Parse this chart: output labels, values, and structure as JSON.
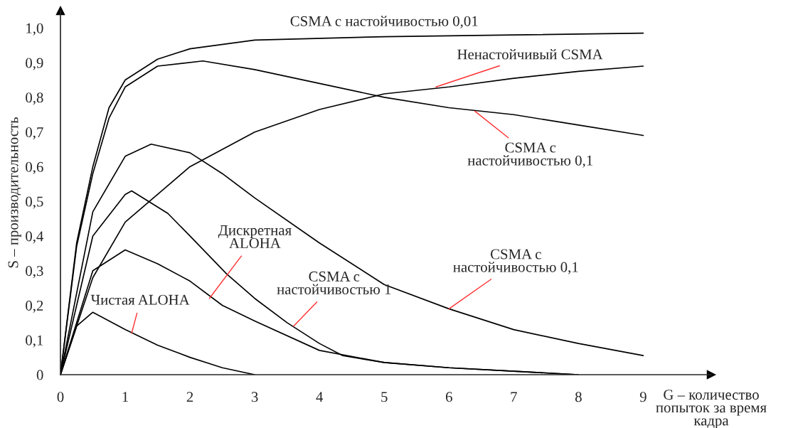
{
  "chart_data": {
    "type": "line",
    "xlabel": "G – количество\nпопыток за время\nкадра",
    "ylabel": "S – производительность",
    "xlim": [
      0,
      10.05
    ],
    "ylim": [
      0,
      1.05
    ],
    "xticks": [
      0,
      1,
      2,
      3,
      4,
      5,
      6,
      7,
      8,
      9
    ],
    "yticks": [
      0,
      {
        "value": 0.1,
        "label": "0,1"
      },
      {
        "value": 0.2,
        "label": "0,2"
      },
      {
        "value": 0.3,
        "label": "0,3"
      },
      {
        "value": 0.4,
        "label": "0,4"
      },
      {
        "value": 0.5,
        "label": "0,5"
      },
      {
        "value": 0.6,
        "label": "0,6"
      },
      {
        "value": 0.7,
        "label": "0,7"
      },
      {
        "value": 0.8,
        "label": "0,8"
      },
      {
        "value": 0.9,
        "label": "0,9"
      },
      {
        "value": 1.0,
        "label": "1,0"
      }
    ],
    "grid": false,
    "legend": false,
    "series": [
      {
        "color": "#000000",
        "x": [
          0,
          0.25,
          0.5,
          0.75,
          1,
          1.5,
          2,
          3,
          5,
          7,
          9
        ],
        "values": [
          0,
          0.38,
          0.6,
          0.77,
          0.85,
          0.91,
          0.94,
          0.965,
          0.975,
          0.98,
          0.985
        ]
      },
      {
        "color": "#000000",
        "x": [
          0,
          0.25,
          0.5,
          0.75,
          1,
          1.5,
          2.2,
          3,
          4,
          5,
          6,
          7,
          8,
          9
        ],
        "values": [
          0,
          0.37,
          0.58,
          0.74,
          0.83,
          0.89,
          0.905,
          0.88,
          0.84,
          0.8,
          0.77,
          0.75,
          0.72,
          0.69
        ]
      },
      {
        "color": "#000000",
        "x": [
          0,
          0.5,
          1,
          2,
          3,
          4,
          5,
          6,
          7,
          8,
          9
        ],
        "values": [
          0,
          0.28,
          0.44,
          0.6,
          0.7,
          0.765,
          0.81,
          0.83,
          0.855,
          0.875,
          0.89
        ]
      },
      {
        "color": "#000000",
        "x": [
          0,
          0.5,
          1,
          1.4,
          2,
          2.5,
          3,
          4,
          5,
          6,
          7,
          8,
          9
        ],
        "values": [
          0,
          0.47,
          0.63,
          0.665,
          0.64,
          0.58,
          0.51,
          0.38,
          0.26,
          0.19,
          0.13,
          0.09,
          0.055
        ]
      },
      {
        "color": "#000000",
        "x": [
          0,
          0.5,
          1,
          1.1,
          1.66,
          2,
          2.57,
          3,
          3.5,
          4,
          4.36,
          5,
          6,
          7,
          8
        ],
        "values": [
          0,
          0.4,
          0.52,
          0.53,
          0.465,
          0.4,
          0.29,
          0.22,
          0.15,
          0.09,
          0.055,
          0.035,
          0.02,
          0.01,
          0
        ]
      },
      {
        "color": "#000000",
        "x": [
          0,
          0.5,
          1,
          1.5,
          2,
          2.5,
          3,
          4,
          5,
          6,
          7,
          8
        ],
        "values": [
          0,
          0.3,
          0.36,
          0.32,
          0.27,
          0.2,
          0.155,
          0.07,
          0.035,
          0.02,
          0.01,
          0
        ]
      },
      {
        "color": "#000000",
        "x": [
          0,
          0.25,
          0.5,
          1,
          1.5,
          2,
          2.5,
          3
        ],
        "values": [
          0,
          0.14,
          0.18,
          0.13,
          0.085,
          0.05,
          0.02,
          0
        ]
      }
    ],
    "annotations": [
      {
        "text": "CSMA с настойчивостью 0,01",
        "x": 5,
        "y": 0.975
      },
      {
        "text": "Ненастойчивый CSMA",
        "x": 5.8,
        "y": 0.83
      },
      {
        "text": "CSMA с\nнастойчивостью 0,1",
        "x": 6.4,
        "y": 0.76
      },
      {
        "text": "CSMA с\nнастойчивостью 0,1",
        "x": 6.0,
        "y": 0.19
      },
      {
        "text": "CSMA с\nнастойчивостью 1",
        "x": 3.6,
        "y": 0.14
      },
      {
        "text": "Дискретная\nALOHA",
        "x": 2.3,
        "y": 0.22
      },
      {
        "text": "Чистая ALOHA",
        "x": 1.1,
        "y": 0.12
      }
    ]
  }
}
